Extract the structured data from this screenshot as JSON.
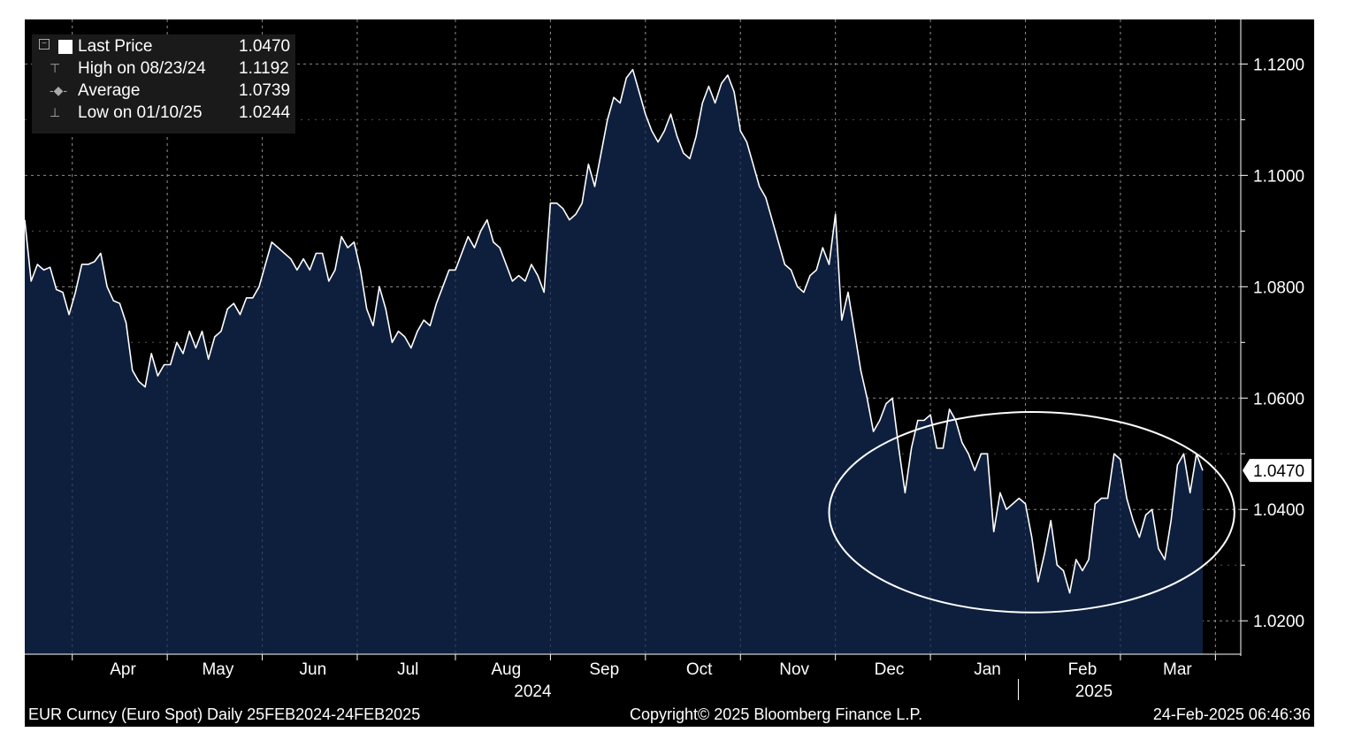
{
  "legend": {
    "last_price_label": "Last Price",
    "last_price_value": "1.0470",
    "high_label": "High on 08/23/24",
    "high_value": "1.1192",
    "average_label": "Average",
    "average_value": "1.0739",
    "low_label": "Low on 01/10/25",
    "low_value": "1.0244"
  },
  "footer": {
    "left": "EUR Curncy (Euro Spot)  Daily 25FEB2024-24FEB2025",
    "center": "Copyright© 2025 Bloomberg Finance L.P.",
    "right": "24-Feb-2025 06:46:36"
  },
  "colors": {
    "background": "#000000",
    "area_fill": "#0e1f3e",
    "line": "#ffffff",
    "grid": "#8a8a8a"
  },
  "chart_data": {
    "type": "area",
    "x_tick_labels": [
      "Apr",
      "May",
      "Jun",
      "Jul",
      "Aug",
      "Sep",
      "Oct",
      "Nov",
      "Dec",
      "Jan",
      "Feb",
      "Mar"
    ],
    "year_labels": [
      "2024",
      "2025"
    ],
    "y_ticks": [
      "1.0200",
      "1.0400",
      "1.0600",
      "1.0800",
      "1.1000",
      "1.1200"
    ],
    "y_range": [
      1.014,
      1.128
    ],
    "x_range": [
      "2024-03-01",
      "2025-03-20"
    ],
    "last_price_tag": "1.0470",
    "grid": true,
    "legend_position": "top-left",
    "annotation": "ellipse highlighting Nov 2024 - Feb 2025 range",
    "series": [
      {
        "values": [
          [
            "2024-03-01",
            1.092
          ],
          [
            "2024-03-03",
            1.081
          ],
          [
            "2024-03-05",
            1.084
          ],
          [
            "2024-03-07",
            1.083
          ],
          [
            "2024-03-09",
            1.0835
          ],
          [
            "2024-03-11",
            1.0795
          ],
          [
            "2024-03-13",
            1.079
          ],
          [
            "2024-03-15",
            1.075
          ],
          [
            "2024-03-17",
            1.079
          ],
          [
            "2024-03-19",
            1.084
          ],
          [
            "2024-03-21",
            1.084
          ],
          [
            "2024-03-23",
            1.0845
          ],
          [
            "2024-03-25",
            1.086
          ],
          [
            "2024-03-27",
            1.08
          ],
          [
            "2024-03-29",
            1.0775
          ],
          [
            "2024-03-31",
            1.077
          ],
          [
            "2024-04-02",
            1.0735
          ],
          [
            "2024-04-04",
            1.065
          ],
          [
            "2024-04-06",
            1.063
          ],
          [
            "2024-04-08",
            1.062
          ],
          [
            "2024-04-10",
            1.068
          ],
          [
            "2024-04-12",
            1.064
          ],
          [
            "2024-04-14",
            1.066
          ],
          [
            "2024-04-16",
            1.066
          ],
          [
            "2024-04-18",
            1.07
          ],
          [
            "2024-04-20",
            1.068
          ],
          [
            "2024-04-22",
            1.072
          ],
          [
            "2024-04-24",
            1.069
          ],
          [
            "2024-04-26",
            1.072
          ],
          [
            "2024-04-28",
            1.067
          ],
          [
            "2024-04-30",
            1.071
          ],
          [
            "2024-05-02",
            1.072
          ],
          [
            "2024-05-04",
            1.076
          ],
          [
            "2024-05-06",
            1.077
          ],
          [
            "2024-05-08",
            1.075
          ],
          [
            "2024-05-10",
            1.078
          ],
          [
            "2024-05-12",
            1.078
          ],
          [
            "2024-05-14",
            1.08
          ],
          [
            "2024-05-16",
            1.084
          ],
          [
            "2024-05-18",
            1.088
          ],
          [
            "2024-05-20",
            1.087
          ],
          [
            "2024-05-22",
            1.086
          ],
          [
            "2024-05-24",
            1.085
          ],
          [
            "2024-05-26",
            1.083
          ],
          [
            "2024-05-28",
            1.085
          ],
          [
            "2024-05-30",
            1.083
          ],
          [
            "2024-06-01",
            1.086
          ],
          [
            "2024-06-03",
            1.086
          ],
          [
            "2024-06-05",
            1.081
          ],
          [
            "2024-06-07",
            1.083
          ],
          [
            "2024-06-09",
            1.089
          ],
          [
            "2024-06-11",
            1.087
          ],
          [
            "2024-06-13",
            1.088
          ],
          [
            "2024-06-15",
            1.083
          ],
          [
            "2024-06-17",
            1.076
          ],
          [
            "2024-06-19",
            1.073
          ],
          [
            "2024-06-21",
            1.08
          ],
          [
            "2024-06-23",
            1.076
          ],
          [
            "2024-06-25",
            1.07
          ],
          [
            "2024-06-27",
            1.072
          ],
          [
            "2024-06-29",
            1.071
          ],
          [
            "2024-07-01",
            1.069
          ],
          [
            "2024-07-03",
            1.072
          ],
          [
            "2024-07-05",
            1.074
          ],
          [
            "2024-07-07",
            1.073
          ],
          [
            "2024-07-09",
            1.077
          ],
          [
            "2024-07-11",
            1.08
          ],
          [
            "2024-07-13",
            1.083
          ],
          [
            "2024-07-15",
            1.083
          ],
          [
            "2024-07-17",
            1.086
          ],
          [
            "2024-07-19",
            1.089
          ],
          [
            "2024-07-21",
            1.087
          ],
          [
            "2024-07-23",
            1.09
          ],
          [
            "2024-07-25",
            1.092
          ],
          [
            "2024-07-27",
            1.088
          ],
          [
            "2024-07-29",
            1.087
          ],
          [
            "2024-07-31",
            1.084
          ],
          [
            "2024-08-02",
            1.081
          ],
          [
            "2024-08-04",
            1.082
          ],
          [
            "2024-08-06",
            1.081
          ],
          [
            "2024-08-08",
            1.084
          ],
          [
            "2024-08-10",
            1.082
          ],
          [
            "2024-08-12",
            1.079
          ],
          [
            "2024-08-14",
            1.095
          ],
          [
            "2024-08-16",
            1.095
          ],
          [
            "2024-08-18",
            1.094
          ],
          [
            "2024-08-20",
            1.092
          ],
          [
            "2024-08-22",
            1.093
          ],
          [
            "2024-08-24",
            1.095
          ],
          [
            "2024-08-26",
            1.102
          ],
          [
            "2024-08-28",
            1.098
          ],
          [
            "2024-08-30",
            1.104
          ],
          [
            "2024-09-01",
            1.11
          ],
          [
            "2024-09-03",
            1.114
          ],
          [
            "2024-09-05",
            1.113
          ],
          [
            "2024-09-07",
            1.1175
          ],
          [
            "2024-09-09",
            1.119
          ],
          [
            "2024-09-11",
            1.115
          ],
          [
            "2024-09-13",
            1.111
          ],
          [
            "2024-09-15",
            1.108
          ],
          [
            "2024-09-17",
            1.106
          ],
          [
            "2024-09-19",
            1.108
          ],
          [
            "2024-09-21",
            1.111
          ],
          [
            "2024-09-23",
            1.107
          ],
          [
            "2024-09-25",
            1.104
          ],
          [
            "2024-09-27",
            1.103
          ],
          [
            "2024-09-29",
            1.107
          ],
          [
            "2024-10-01",
            1.113
          ],
          [
            "2024-10-03",
            1.116
          ],
          [
            "2024-10-05",
            1.113
          ],
          [
            "2024-10-07",
            1.1165
          ],
          [
            "2024-10-09",
            1.118
          ],
          [
            "2024-10-11",
            1.115
          ],
          [
            "2024-10-13",
            1.108
          ],
          [
            "2024-10-15",
            1.106
          ],
          [
            "2024-10-17",
            1.102
          ],
          [
            "2024-10-19",
            1.098
          ],
          [
            "2024-10-21",
            1.096
          ],
          [
            "2024-10-23",
            1.092
          ],
          [
            "2024-10-25",
            1.088
          ],
          [
            "2024-10-27",
            1.084
          ],
          [
            "2024-10-29",
            1.083
          ],
          [
            "2024-10-31",
            1.08
          ],
          [
            "2024-11-02",
            1.079
          ],
          [
            "2024-11-04",
            1.082
          ],
          [
            "2024-11-06",
            1.083
          ],
          [
            "2024-11-08",
            1.087
          ],
          [
            "2024-11-10",
            1.084
          ],
          [
            "2024-11-12",
            1.093
          ],
          [
            "2024-11-14",
            1.074
          ],
          [
            "2024-11-16",
            1.079
          ],
          [
            "2024-11-18",
            1.072
          ],
          [
            "2024-11-20",
            1.065
          ],
          [
            "2024-11-22",
            1.06
          ],
          [
            "2024-11-24",
            1.054
          ],
          [
            "2024-11-26",
            1.056
          ],
          [
            "2024-11-28",
            1.059
          ],
          [
            "2024-11-30",
            1.06
          ],
          [
            "2024-12-02",
            1.051
          ],
          [
            "2024-12-04",
            1.043
          ],
          [
            "2024-12-06",
            1.051
          ],
          [
            "2024-12-08",
            1.056
          ],
          [
            "2024-12-10",
            1.056
          ],
          [
            "2024-12-12",
            1.057
          ],
          [
            "2024-12-14",
            1.051
          ],
          [
            "2024-12-16",
            1.051
          ],
          [
            "2024-12-18",
            1.058
          ],
          [
            "2024-12-20",
            1.056
          ],
          [
            "2024-12-22",
            1.052
          ],
          [
            "2024-12-24",
            1.05
          ],
          [
            "2024-12-26",
            1.047
          ],
          [
            "2024-12-28",
            1.05
          ],
          [
            "2024-12-30",
            1.05
          ],
          [
            "2025-01-01",
            1.036
          ],
          [
            "2025-01-03",
            1.043
          ],
          [
            "2025-01-05",
            1.04
          ],
          [
            "2025-01-07",
            1.041
          ],
          [
            "2025-01-09",
            1.042
          ],
          [
            "2025-01-11",
            1.041
          ],
          [
            "2025-01-13",
            1.035
          ],
          [
            "2025-01-15",
            1.027
          ],
          [
            "2025-01-17",
            1.032
          ],
          [
            "2025-01-19",
            1.038
          ],
          [
            "2025-01-21",
            1.03
          ],
          [
            "2025-01-23",
            1.029
          ],
          [
            "2025-01-25",
            1.025
          ],
          [
            "2025-01-27",
            1.031
          ],
          [
            "2025-01-29",
            1.029
          ],
          [
            "2025-01-31",
            1.031
          ],
          [
            "2025-02-02",
            1.041
          ],
          [
            "2025-02-04",
            1.042
          ],
          [
            "2025-02-06",
            1.042
          ],
          [
            "2025-02-08",
            1.05
          ],
          [
            "2025-02-10",
            1.049
          ],
          [
            "2025-02-12",
            1.042
          ],
          [
            "2025-02-14",
            1.038
          ],
          [
            "2025-02-16",
            1.035
          ],
          [
            "2025-02-18",
            1.039
          ],
          [
            "2025-02-20",
            1.04
          ],
          [
            "2025-02-22",
            1.033
          ],
          [
            "2025-02-24",
            1.031
          ],
          [
            "2025-02-26",
            1.038
          ],
          [
            "2025-02-28",
            1.048
          ],
          [
            "2025-03-02",
            1.05
          ],
          [
            "2025-03-04",
            1.043
          ],
          [
            "2025-03-06",
            1.05
          ],
          [
            "2025-03-08",
            1.047
          ]
        ]
      }
    ]
  }
}
